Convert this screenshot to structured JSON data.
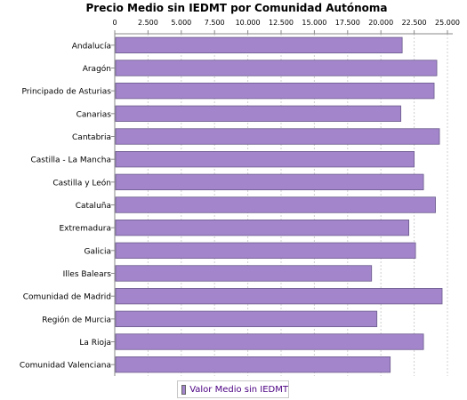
{
  "chart_data": {
    "type": "bar",
    "orientation": "horizontal",
    "title": "Precio Medio sin IEDMT por Comunidad Autónoma",
    "x_axis_position": "top",
    "xlim": [
      0,
      25000
    ],
    "xticks": [
      0,
      2500,
      5000,
      7500,
      10000,
      12500,
      15000,
      17500,
      20000,
      22500,
      25000
    ],
    "xtick_labels": [
      "0",
      "2.500",
      "5.000",
      "7.500",
      "10.000",
      "12.500",
      "15.000",
      "17.500",
      "20.000",
      "22.500",
      "25.000"
    ],
    "grid": "vertical-dashed",
    "legend_position": "bottom-center",
    "bar_color": "#a385cc",
    "categories": [
      "Andalucía",
      "Aragón",
      "Principado de Asturias",
      "Canarias",
      "Cantabria",
      "Castilla - La Mancha",
      "Castilla y León",
      "Cataluña",
      "Extremadura",
      "Galicia",
      "Illes Balears",
      "Comunidad de Madrid",
      "Región de Murcia",
      "La Rioja",
      "Comunidad Valenciana"
    ],
    "series": [
      {
        "name": "Valor Medio sin IEDMT",
        "values": [
          21600,
          24200,
          24000,
          21500,
          24400,
          22500,
          23200,
          24100,
          22100,
          22600,
          19300,
          24600,
          19700,
          23200,
          20700
        ]
      }
    ]
  }
}
